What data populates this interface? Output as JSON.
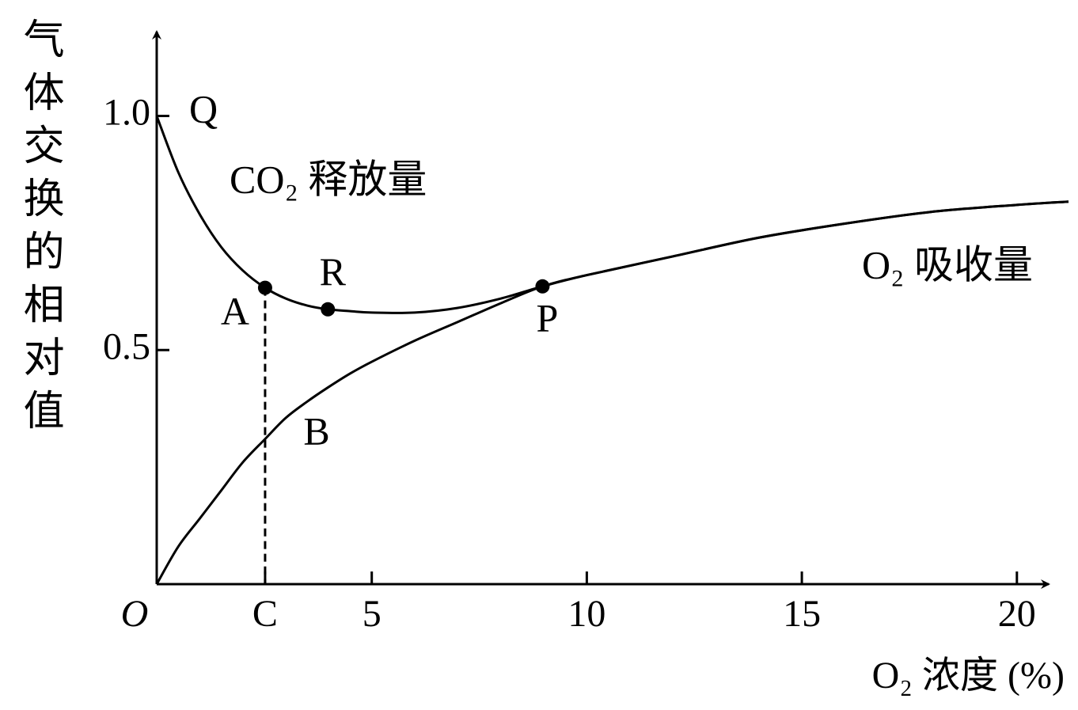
{
  "chart_data": {
    "type": "line",
    "xlabel": "O₂ 浓度 (%)",
    "ylabel": "气体交换的相对值",
    "x": [
      0,
      0.5,
      1,
      1.5,
      2,
      2.52,
      3,
      3.5,
      3.98,
      4.5,
      5,
      6,
      7,
      8,
      8.97,
      10,
      12,
      14,
      16,
      18,
      20,
      21.2
    ],
    "series": [
      {
        "name": "CO₂ 释放量",
        "color": "#000000",
        "values": [
          1.0,
          0.88,
          0.79,
          0.72,
          0.67,
          0.633,
          0.61,
          0.595,
          0.587,
          0.583,
          0.58,
          0.58,
          0.59,
          0.61,
          0.636,
          0.66,
          0.7,
          0.74,
          0.77,
          0.795,
          0.81,
          0.817
        ]
      },
      {
        "name": "O₂ 吸收量",
        "color": "#000000",
        "values": [
          0,
          0.08,
          0.14,
          0.2,
          0.26,
          0.31,
          0.355,
          0.39,
          0.42,
          0.45,
          0.475,
          0.52,
          0.56,
          0.6,
          0.636,
          0.66,
          0.7,
          0.74,
          0.77,
          0.795,
          0.81,
          0.817
        ]
      }
    ],
    "points": [
      {
        "label": "A",
        "x": 2.52,
        "y": 0.633
      },
      {
        "label": "R",
        "x": 3.98,
        "y": 0.587
      },
      {
        "label": "P",
        "x": 8.97,
        "y": 0.636
      }
    ],
    "annotations": [
      "Q",
      "B"
    ],
    "xlim": [
      0,
      21.2
    ],
    "ylim": [
      0,
      1.18
    ],
    "xticks": [
      {
        "value": 0,
        "label": "O"
      },
      {
        "value": 2.52,
        "label": "C"
      },
      5,
      10,
      15,
      20
    ],
    "yticks": [
      0.5,
      {
        "value": 1,
        "label": "1.0"
      }
    ]
  }
}
